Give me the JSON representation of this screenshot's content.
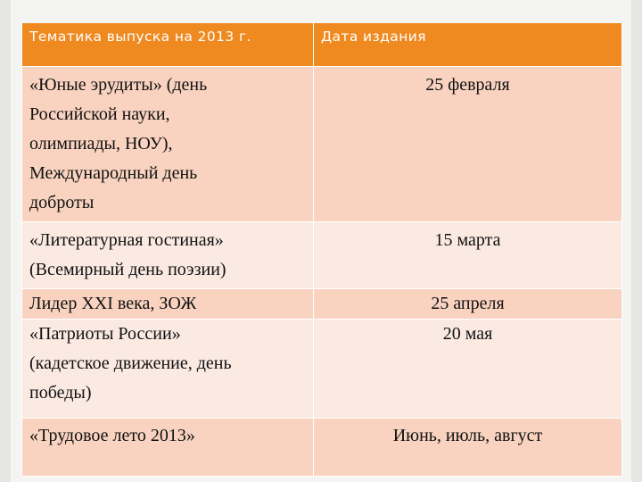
{
  "table": {
    "headers": [
      "Тематика выпуска на 2013 г.",
      "Дата издания"
    ],
    "rows": [
      {
        "topic_lines": [
          "«Юные эрудиты» (день",
          "Российской науки,",
          "олимпиады, НОУ),",
          "Международный день",
          "доброты"
        ],
        "date": "25 февраля"
      },
      {
        "topic_lines": [
          "«Литературная гостиная»",
          "(Всемирный день поэзии)"
        ],
        "date": "15 марта"
      },
      {
        "topic_lines": [
          "Лидер XXI века, ЗОЖ"
        ],
        "date": "25 апреля"
      },
      {
        "topic_lines": [
          "«Патриоты России»",
          "(кадетское движение, день",
          "победы)"
        ],
        "date": "20 мая"
      },
      {
        "topic_lines": [
          "«Трудовое лето 2013»"
        ],
        "date": "Июнь, июль, август"
      }
    ]
  },
  "colors": {
    "header": "#ef8a20",
    "row_odd": "#f9d3c0",
    "row_even": "#fbeae2",
    "background": "#f4f4f2"
  }
}
